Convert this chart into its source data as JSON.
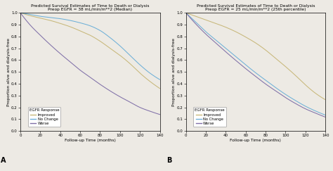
{
  "panel_A": {
    "title_line1": "Predicted Survival Estimates of Time to Death or Dialysis",
    "title_line2": "Preop EGFR = 38 mL/min/m**2 (Median)",
    "label": "A",
    "improved_knots_x": [
      0,
      10,
      20,
      30,
      40,
      50,
      60,
      70,
      80,
      90,
      100,
      110,
      120,
      130,
      140
    ],
    "improved_knots_y": [
      1.0,
      0.975,
      0.955,
      0.935,
      0.91,
      0.882,
      0.847,
      0.81,
      0.76,
      0.7,
      0.64,
      0.57,
      0.49,
      0.42,
      0.36
    ],
    "nochange_knots_x": [
      0,
      10,
      20,
      30,
      40,
      50,
      60,
      70,
      80,
      90,
      100,
      110,
      120,
      130,
      140
    ],
    "nochange_knots_y": [
      1.0,
      0.985,
      0.97,
      0.96,
      0.95,
      0.935,
      0.915,
      0.89,
      0.85,
      0.79,
      0.72,
      0.64,
      0.56,
      0.49,
      0.435
    ],
    "worse_knots_x": [
      0,
      10,
      20,
      30,
      40,
      50,
      60,
      70,
      80,
      90,
      100,
      110,
      120,
      130,
      140
    ],
    "worse_knots_y": [
      1.0,
      0.895,
      0.81,
      0.73,
      0.655,
      0.585,
      0.515,
      0.455,
      0.395,
      0.34,
      0.29,
      0.245,
      0.2,
      0.168,
      0.14
    ]
  },
  "panel_B": {
    "title_line1": "Predicted Survival Estimates of Time to Death or Dialysis",
    "title_line2": "Preop EGFR = 25 mL/min/m**2 (25th percentile)",
    "label": "B",
    "improved_knots_x": [
      0,
      10,
      20,
      30,
      40,
      50,
      60,
      70,
      80,
      90,
      100,
      110,
      120,
      130,
      140
    ],
    "improved_knots_y": [
      1.0,
      0.97,
      0.94,
      0.91,
      0.878,
      0.84,
      0.795,
      0.745,
      0.685,
      0.615,
      0.545,
      0.47,
      0.39,
      0.32,
      0.265
    ],
    "nochange_knots_x": [
      0,
      10,
      20,
      30,
      40,
      50,
      60,
      70,
      80,
      90,
      100,
      110,
      120,
      130,
      140
    ],
    "nochange_knots_y": [
      1.0,
      0.92,
      0.84,
      0.77,
      0.7,
      0.63,
      0.56,
      0.493,
      0.43,
      0.368,
      0.31,
      0.258,
      0.21,
      0.17,
      0.135
    ],
    "worse_knots_x": [
      0,
      10,
      20,
      30,
      40,
      50,
      60,
      70,
      80,
      90,
      100,
      110,
      120,
      130,
      140
    ],
    "worse_knots_y": [
      1.0,
      0.905,
      0.82,
      0.745,
      0.67,
      0.598,
      0.528,
      0.462,
      0.398,
      0.34,
      0.283,
      0.233,
      0.188,
      0.152,
      0.118
    ]
  },
  "improved_color": "#C8B87A",
  "nochange_color": "#6EB0D8",
  "worse_color": "#8070A8",
  "ylabel": "Proportion alive and dialysis-free",
  "xlabel": "Follow-up Time (months)",
  "xlim": [
    0,
    140
  ],
  "ylim": [
    0.0,
    1.0
  ],
  "xticks": [
    0,
    20,
    40,
    60,
    80,
    100,
    120,
    140
  ],
  "yticks": [
    0.0,
    0.1,
    0.2,
    0.3,
    0.4,
    0.5,
    0.6,
    0.7,
    0.8,
    0.9,
    1.0
  ],
  "legend_title": "EGFR Response",
  "legend_labels": [
    "Improved",
    "No Change",
    "Worse"
  ],
  "bg_color": "#EDEAE4"
}
